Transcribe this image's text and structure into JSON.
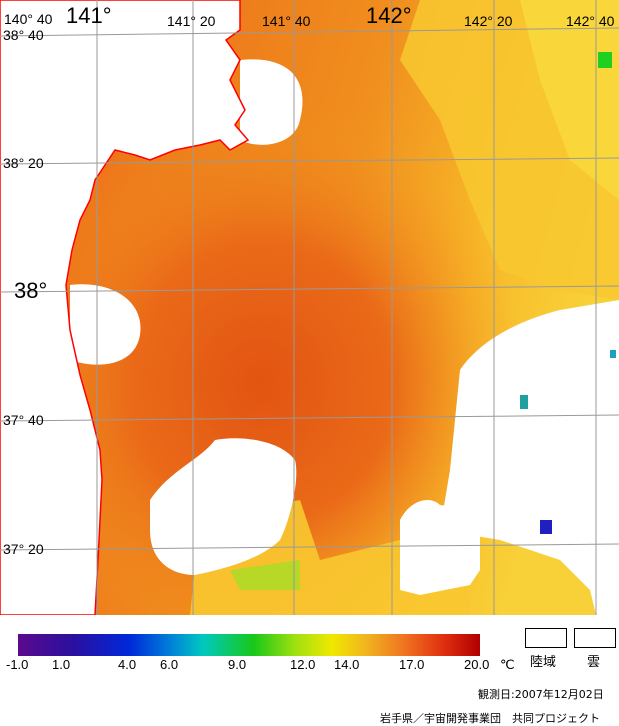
{
  "map": {
    "lon_labels": [
      "140° 40",
      "141°",
      "141° 20",
      "141° 40",
      "142°",
      "142° 20",
      "142° 40"
    ],
    "lat_labels": [
      "38° 40",
      "38° 20",
      "38°",
      "37° 40",
      "37° 20"
    ],
    "colors": {
      "sea_hot": "#e85a14",
      "sea_warm": "#f08a1c",
      "sea_mild": "#f8b828",
      "sea_cool": "#f8d838",
      "land": "#ffffff",
      "coast": "#ff0000",
      "grid": "#999999"
    }
  },
  "legend": {
    "ticks": [
      "-1.0",
      "1.0",
      "4.0",
      "6.0",
      "9.0",
      "12.0",
      "14.0",
      "17.0",
      "20.0"
    ],
    "unit": "℃",
    "land_label": "陸域",
    "cloud_label": "雲"
  },
  "footer": {
    "observation_date": "観測日:2007年12月02日",
    "credit": "岩手県／宇宙開発事業団　共同プロジェクト"
  }
}
